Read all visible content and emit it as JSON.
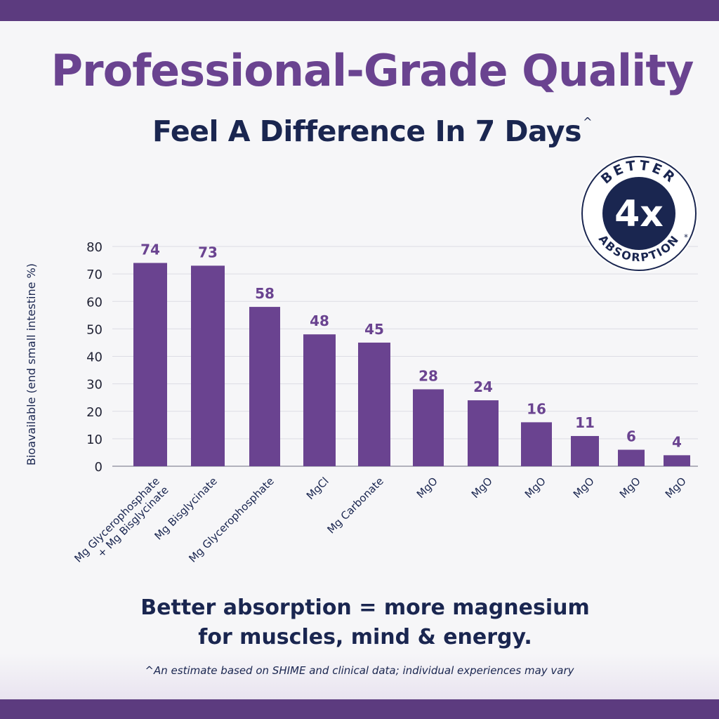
{
  "colors": {
    "brand_purple": "#6a4390",
    "dark_purple": "#5c3b7f",
    "navy": "#1a2650",
    "grid": "#dcdce4",
    "axis_text": "#222436",
    "background": "#f6f6f8"
  },
  "header": {
    "title": "Professional-Grade Quality",
    "subtitle": "Feel A Difference In 7 Days",
    "subtitle_mark": "^"
  },
  "badge": {
    "top_text": "BETTER",
    "value": "4x",
    "bottom_text": "ABSORPTION",
    "mark": "*",
    "icon": "absorption-seal-icon"
  },
  "chart_data": {
    "type": "bar",
    "categories": [
      [
        "Mg Glycerophosphate",
        "+ Mg Bisglycinate"
      ],
      [
        "Mg Bisglycinate"
      ],
      [
        "Mg Glycerophosphate"
      ],
      [
        "MgCl"
      ],
      [
        "Mg Carbonate"
      ],
      [
        "MgO"
      ],
      [
        "MgO"
      ],
      [
        "MgO"
      ],
      [
        "MgO"
      ],
      [
        "MgO"
      ],
      [
        "MgO"
      ]
    ],
    "values": [
      74,
      73,
      58,
      48,
      45,
      28,
      24,
      16,
      11,
      6,
      4
    ],
    "data_labels": [
      "74",
      "73",
      "58",
      "48",
      "45",
      "28",
      "24",
      "16",
      "11",
      "6",
      "4"
    ],
    "ylabel": "Bioavailable (end small intestine %)",
    "xlabel": "",
    "ylim": [
      0,
      80
    ],
    "yticks": [
      0,
      10,
      20,
      30,
      40,
      50,
      60,
      70,
      80
    ],
    "grid": true,
    "legend": "none"
  },
  "footer": {
    "tagline_line1": "Better absorption = more magnesium",
    "tagline_line2": "for muscles, mind & energy.",
    "footnote": "^An estimate based on SHIME and clinical data; individual experiences may vary"
  }
}
